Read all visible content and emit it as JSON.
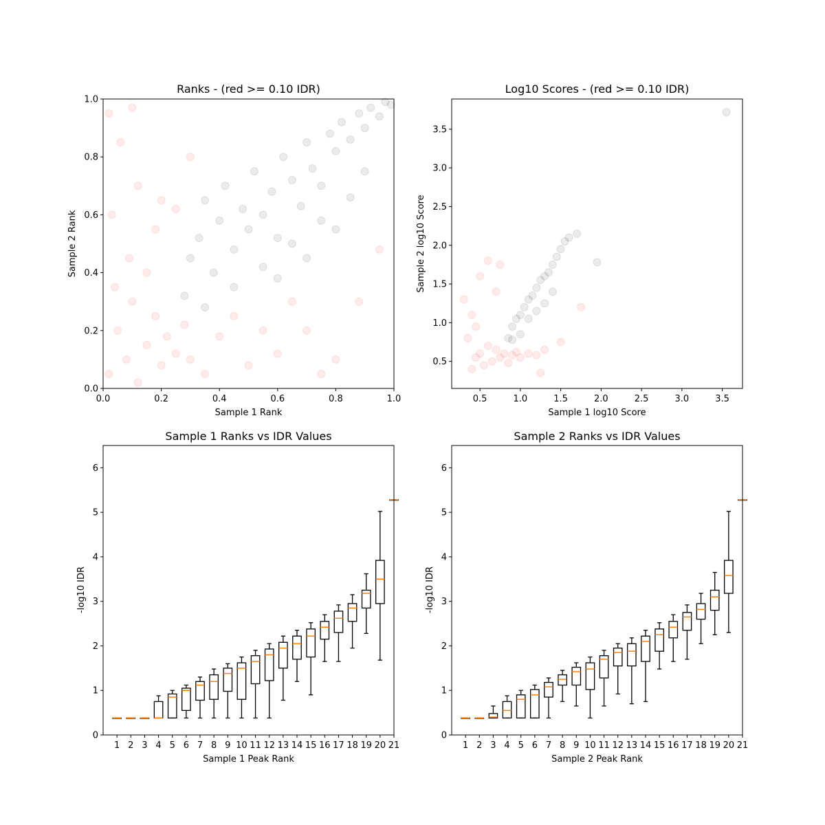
{
  "figure": {
    "background": "#ffffff"
  },
  "colors": {
    "pass": "#000000",
    "fail": "#ff0000",
    "median": "#ff7f0e",
    "box": "#000000"
  },
  "chart_data": [
    {
      "id": "ranks",
      "type": "scatter",
      "title": "Ranks - (red >= 0.10 IDR)",
      "xlabel": "Sample 1 Rank",
      "ylabel": "Sample 2 Rank",
      "xlim": [
        0.0,
        1.0
      ],
      "ylim": [
        0.0,
        1.0
      ],
      "xticks": [
        0.0,
        0.2,
        0.4,
        0.6,
        0.8,
        1.0
      ],
      "yticks": [
        0.0,
        0.2,
        0.4,
        0.6,
        0.8,
        1.0
      ],
      "xtick_labels": [
        "0.0",
        "0.2",
        "0.4",
        "0.6",
        "0.8",
        "1.0"
      ],
      "ytick_labels": [
        "0.0",
        "0.2",
        "0.4",
        "0.6",
        "0.8",
        "1.0"
      ],
      "series": [
        {
          "color": "#000000",
          "alpha": 0.08,
          "points": [
            [
              0.28,
              0.32
            ],
            [
              0.3,
              0.45
            ],
            [
              0.33,
              0.52
            ],
            [
              0.35,
              0.65
            ],
            [
              0.38,
              0.4
            ],
            [
              0.4,
              0.58
            ],
            [
              0.42,
              0.7
            ],
            [
              0.45,
              0.48
            ],
            [
              0.48,
              0.62
            ],
            [
              0.5,
              0.55
            ],
            [
              0.52,
              0.75
            ],
            [
              0.55,
              0.6
            ],
            [
              0.58,
              0.68
            ],
            [
              0.6,
              0.52
            ],
            [
              0.62,
              0.8
            ],
            [
              0.65,
              0.72
            ],
            [
              0.68,
              0.63
            ],
            [
              0.7,
              0.85
            ],
            [
              0.72,
              0.76
            ],
            [
              0.75,
              0.7
            ],
            [
              0.78,
              0.88
            ],
            [
              0.8,
              0.82
            ],
            [
              0.82,
              0.92
            ],
            [
              0.85,
              0.86
            ],
            [
              0.88,
              0.95
            ],
            [
              0.9,
              0.9
            ],
            [
              0.92,
              0.97
            ],
            [
              0.95,
              0.94
            ],
            [
              0.97,
              0.99
            ],
            [
              0.99,
              0.98
            ],
            [
              0.45,
              0.35
            ],
            [
              0.55,
              0.42
            ],
            [
              0.65,
              0.5
            ],
            [
              0.75,
              0.58
            ],
            [
              0.85,
              0.66
            ],
            [
              0.35,
              0.28
            ],
            [
              0.6,
              0.38
            ],
            [
              0.7,
              0.45
            ],
            [
              0.8,
              0.55
            ],
            [
              0.9,
              0.75
            ]
          ]
        },
        {
          "color": "#ff0000",
          "alpha": 0.08,
          "points": [
            [
              0.02,
              0.05
            ],
            [
              0.05,
              0.2
            ],
            [
              0.08,
              0.1
            ],
            [
              0.1,
              0.3
            ],
            [
              0.12,
              0.02
            ],
            [
              0.15,
              0.15
            ],
            [
              0.18,
              0.25
            ],
            [
              0.2,
              0.08
            ],
            [
              0.22,
              0.18
            ],
            [
              0.25,
              0.12
            ],
            [
              0.03,
              0.6
            ],
            [
              0.06,
              0.85
            ],
            [
              0.09,
              0.45
            ],
            [
              0.12,
              0.7
            ],
            [
              0.15,
              0.4
            ],
            [
              0.18,
              0.55
            ],
            [
              0.25,
              0.62
            ],
            [
              0.3,
              0.1
            ],
            [
              0.35,
              0.05
            ],
            [
              0.4,
              0.18
            ],
            [
              0.45,
              0.25
            ],
            [
              0.5,
              0.08
            ],
            [
              0.55,
              0.2
            ],
            [
              0.6,
              0.12
            ],
            [
              0.7,
              0.2
            ],
            [
              0.8,
              0.1
            ],
            [
              0.02,
              0.95
            ],
            [
              0.1,
              0.97
            ],
            [
              0.04,
              0.35
            ],
            [
              0.28,
              0.22
            ],
            [
              0.95,
              0.48
            ],
            [
              0.88,
              0.3
            ],
            [
              0.65,
              0.3
            ],
            [
              0.75,
              0.05
            ],
            [
              0.3,
              0.8
            ],
            [
              0.2,
              0.65
            ]
          ]
        }
      ]
    },
    {
      "id": "scores",
      "type": "scatter",
      "title": "Log10 Scores - (red >= 0.10 IDR)",
      "xlabel": "Sample 1 log10 Score",
      "ylabel": "Sample 2 log10 Score",
      "xlim": [
        0.15,
        3.75
      ],
      "ylim": [
        0.15,
        3.89
      ],
      "xticks": [
        0.5,
        1.0,
        1.5,
        2.0,
        2.5,
        3.0,
        3.5
      ],
      "yticks": [
        0.5,
        1.0,
        1.5,
        2.0,
        2.5,
        3.0,
        3.5
      ],
      "xtick_labels": [
        "0.5",
        "1.0",
        "1.5",
        "2.0",
        "2.5",
        "3.0",
        "3.5"
      ],
      "ytick_labels": [
        "0.5",
        "1.0",
        "1.5",
        "2.0",
        "2.5",
        "3.0",
        "3.5"
      ],
      "series": [
        {
          "color": "#000000",
          "alpha": 0.08,
          "points": [
            [
              0.85,
              0.8
            ],
            [
              0.9,
              0.95
            ],
            [
              0.95,
              1.05
            ],
            [
              1.0,
              1.1
            ],
            [
              1.05,
              1.2
            ],
            [
              1.1,
              1.3
            ],
            [
              1.15,
              1.35
            ],
            [
              1.2,
              1.45
            ],
            [
              1.25,
              1.55
            ],
            [
              1.3,
              1.6
            ],
            [
              1.35,
              1.65
            ],
            [
              1.4,
              1.75
            ],
            [
              1.45,
              1.85
            ],
            [
              1.5,
              1.95
            ],
            [
              1.55,
              2.05
            ],
            [
              1.6,
              2.1
            ],
            [
              1.7,
              2.15
            ],
            [
              1.95,
              1.78
            ],
            [
              1.1,
              1.05
            ],
            [
              1.2,
              1.15
            ],
            [
              1.3,
              1.25
            ],
            [
              1.4,
              1.4
            ],
            [
              0.9,
              0.78
            ],
            [
              1.0,
              0.85
            ],
            [
              3.55,
              3.72
            ]
          ]
        },
        {
          "color": "#ff0000",
          "alpha": 0.08,
          "points": [
            [
              0.45,
              0.55
            ],
            [
              0.5,
              0.6
            ],
            [
              0.55,
              0.45
            ],
            [
              0.6,
              0.7
            ],
            [
              0.65,
              0.5
            ],
            [
              0.7,
              0.65
            ],
            [
              0.75,
              0.55
            ],
            [
              0.8,
              0.6
            ],
            [
              0.85,
              0.48
            ],
            [
              0.9,
              0.58
            ],
            [
              0.95,
              0.62
            ],
            [
              1.0,
              0.55
            ],
            [
              1.1,
              0.6
            ],
            [
              1.2,
              0.58
            ],
            [
              1.3,
              0.65
            ],
            [
              0.3,
              1.3
            ],
            [
              0.4,
              1.1
            ],
            [
              0.5,
              1.6
            ],
            [
              0.6,
              1.8
            ],
            [
              0.7,
              1.4
            ],
            [
              0.35,
              0.8
            ],
            [
              0.45,
              0.95
            ],
            [
              1.5,
              0.75
            ],
            [
              1.75,
              1.2
            ],
            [
              1.25,
              0.35
            ],
            [
              0.4,
              0.4
            ],
            [
              0.75,
              1.75
            ]
          ]
        }
      ]
    },
    {
      "id": "s1-idr",
      "type": "box",
      "title": "Sample 1 Ranks vs IDR Values",
      "xlabel": "Sample 1 Peak Rank",
      "ylabel": "-log10 IDR",
      "xlim": [
        0.0,
        21.0
      ],
      "ylim": [
        0,
        6.5
      ],
      "yticks": [
        0,
        1,
        2,
        3,
        4,
        5,
        6
      ],
      "ytick_labels": [
        "0",
        "1",
        "2",
        "3",
        "4",
        "5",
        "6"
      ],
      "categories": [
        "1",
        "2",
        "3",
        "4",
        "5",
        "6",
        "7",
        "8",
        "9",
        "10",
        "11",
        "12",
        "13",
        "14",
        "15",
        "16",
        "17",
        "18",
        "19",
        "20",
        "21"
      ],
      "boxes": [
        {
          "whislo": 0.38,
          "q1": 0.38,
          "med": 0.38,
          "q3": 0.38,
          "whishi": 0.38
        },
        {
          "whislo": 0.38,
          "q1": 0.38,
          "med": 0.38,
          "q3": 0.38,
          "whishi": 0.38
        },
        {
          "whislo": 0.38,
          "q1": 0.38,
          "med": 0.38,
          "q3": 0.38,
          "whishi": 0.38
        },
        {
          "whislo": 0.38,
          "q1": 0.38,
          "med": 0.38,
          "q3": 0.75,
          "whishi": 0.88
        },
        {
          "whislo": 0.38,
          "q1": 0.38,
          "med": 0.85,
          "q3": 0.92,
          "whishi": 1.0
        },
        {
          "whislo": 0.38,
          "q1": 0.55,
          "med": 1.0,
          "q3": 1.05,
          "whishi": 1.12
        },
        {
          "whislo": 0.38,
          "q1": 0.78,
          "med": 1.12,
          "q3": 1.2,
          "whishi": 1.3
        },
        {
          "whislo": 0.38,
          "q1": 0.8,
          "med": 1.2,
          "q3": 1.35,
          "whishi": 1.48
        },
        {
          "whislo": 0.38,
          "q1": 0.98,
          "med": 1.38,
          "q3": 1.5,
          "whishi": 1.6
        },
        {
          "whislo": 0.38,
          "q1": 0.8,
          "med": 1.5,
          "q3": 1.62,
          "whishi": 1.75
        },
        {
          "whislo": 0.38,
          "q1": 1.15,
          "med": 1.65,
          "q3": 1.78,
          "whishi": 1.9
        },
        {
          "whislo": 0.38,
          "q1": 1.22,
          "med": 1.8,
          "q3": 1.93,
          "whishi": 2.05
        },
        {
          "whislo": 0.78,
          "q1": 1.5,
          "med": 1.95,
          "q3": 2.08,
          "whishi": 2.22
        },
        {
          "whislo": 1.2,
          "q1": 1.7,
          "med": 2.05,
          "q3": 2.22,
          "whishi": 2.35
        },
        {
          "whislo": 0.9,
          "q1": 1.75,
          "med": 2.22,
          "q3": 2.38,
          "whishi": 2.52
        },
        {
          "whislo": 1.65,
          "q1": 2.15,
          "med": 2.42,
          "q3": 2.55,
          "whishi": 2.7
        },
        {
          "whislo": 1.65,
          "q1": 2.3,
          "med": 2.62,
          "q3": 2.78,
          "whishi": 2.92
        },
        {
          "whislo": 1.95,
          "q1": 2.55,
          "med": 2.85,
          "q3": 2.95,
          "whishi": 3.15
        },
        {
          "whislo": 2.28,
          "q1": 2.85,
          "med": 3.18,
          "q3": 3.25,
          "whishi": 3.62
        },
        {
          "whislo": 1.68,
          "q1": 2.95,
          "med": 3.5,
          "q3": 3.92,
          "whishi": 5.02
        },
        {
          "whislo": 5.28,
          "q1": 5.28,
          "med": 5.28,
          "q3": 5.28,
          "whishi": 5.28
        }
      ]
    },
    {
      "id": "s2-idr",
      "type": "box",
      "title": "Sample 2 Ranks vs IDR Values",
      "xlabel": "Sample 2 Peak Rank",
      "ylabel": "-log10 IDR",
      "xlim": [
        0.0,
        21.0
      ],
      "ylim": [
        0,
        6.5
      ],
      "yticks": [
        0,
        1,
        2,
        3,
        4,
        5,
        6
      ],
      "ytick_labels": [
        "0",
        "1",
        "2",
        "3",
        "4",
        "5",
        "6"
      ],
      "categories": [
        "1",
        "2",
        "3",
        "4",
        "5",
        "6",
        "7",
        "8",
        "9",
        "10",
        "11",
        "12",
        "13",
        "14",
        "15",
        "16",
        "17",
        "18",
        "19",
        "20",
        "21"
      ],
      "boxes": [
        {
          "whislo": 0.38,
          "q1": 0.38,
          "med": 0.38,
          "q3": 0.38,
          "whishi": 0.38
        },
        {
          "whislo": 0.38,
          "q1": 0.38,
          "med": 0.38,
          "q3": 0.38,
          "whishi": 0.38
        },
        {
          "whislo": 0.38,
          "q1": 0.38,
          "med": 0.4,
          "q3": 0.48,
          "whishi": 0.65
        },
        {
          "whislo": 0.38,
          "q1": 0.38,
          "med": 0.55,
          "q3": 0.75,
          "whishi": 0.88
        },
        {
          "whislo": 0.38,
          "q1": 0.38,
          "med": 0.8,
          "q3": 0.9,
          "whishi": 1.0
        },
        {
          "whislo": 0.38,
          "q1": 0.38,
          "med": 0.9,
          "q3": 1.02,
          "whishi": 1.12
        },
        {
          "whislo": 0.38,
          "q1": 0.85,
          "med": 1.08,
          "q3": 1.18,
          "whishi": 1.28
        },
        {
          "whislo": 0.75,
          "q1": 1.12,
          "med": 1.25,
          "q3": 1.35,
          "whishi": 1.45
        },
        {
          "whislo": 0.65,
          "q1": 1.12,
          "med": 1.42,
          "q3": 1.52,
          "whishi": 1.62
        },
        {
          "whislo": 0.38,
          "q1": 1.02,
          "med": 1.48,
          "q3": 1.62,
          "whishi": 1.75
        },
        {
          "whislo": 0.65,
          "q1": 1.28,
          "med": 1.7,
          "q3": 1.78,
          "whishi": 1.9
        },
        {
          "whislo": 0.92,
          "q1": 1.55,
          "med": 1.85,
          "q3": 1.95,
          "whishi": 2.05
        },
        {
          "whislo": 0.7,
          "q1": 1.55,
          "med": 1.88,
          "q3": 2.05,
          "whishi": 2.18
        },
        {
          "whislo": 0.75,
          "q1": 1.65,
          "med": 2.1,
          "q3": 2.22,
          "whishi": 2.35
        },
        {
          "whislo": 1.48,
          "q1": 1.88,
          "med": 2.25,
          "q3": 2.38,
          "whishi": 2.52
        },
        {
          "whislo": 1.65,
          "q1": 2.18,
          "med": 2.42,
          "q3": 2.55,
          "whishi": 2.7
        },
        {
          "whislo": 1.7,
          "q1": 2.35,
          "med": 2.65,
          "q3": 2.75,
          "whishi": 2.92
        },
        {
          "whislo": 2.05,
          "q1": 2.6,
          "med": 2.82,
          "q3": 2.95,
          "whishi": 3.18
        },
        {
          "whislo": 2.25,
          "q1": 2.8,
          "med": 3.1,
          "q3": 3.25,
          "whishi": 3.65
        },
        {
          "whislo": 2.3,
          "q1": 3.18,
          "med": 3.58,
          "q3": 3.92,
          "whishi": 5.02
        },
        {
          "whislo": 5.28,
          "q1": 5.28,
          "med": 5.28,
          "q3": 5.28,
          "whishi": 5.28
        }
      ]
    }
  ]
}
